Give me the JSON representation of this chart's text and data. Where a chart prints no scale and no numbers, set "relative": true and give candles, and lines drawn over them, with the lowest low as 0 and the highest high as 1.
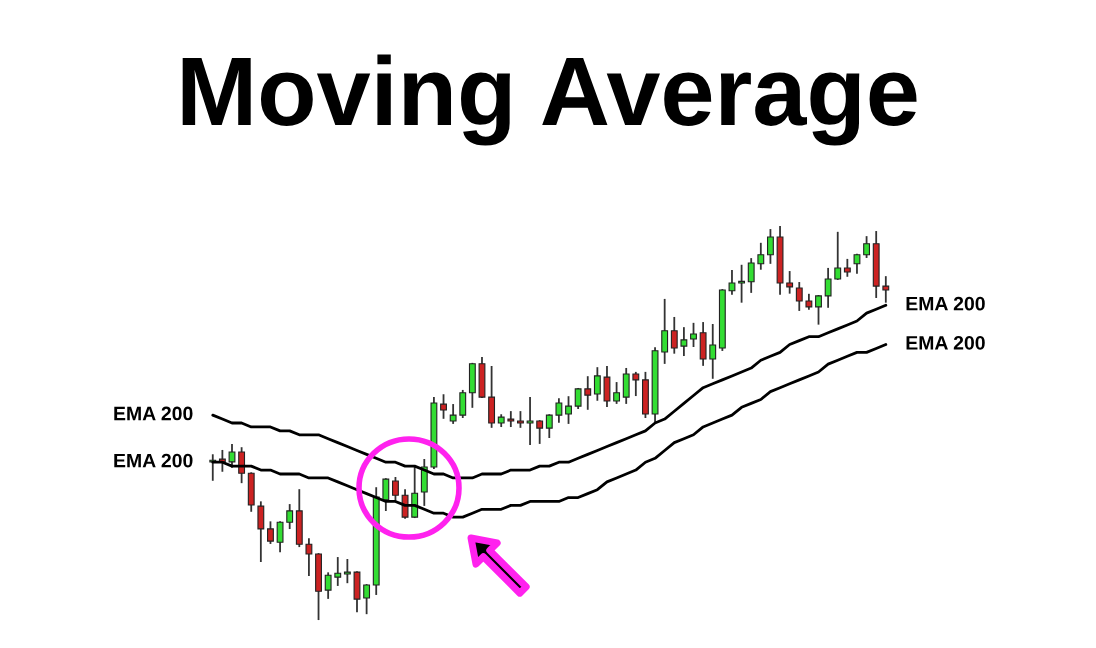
{
  "chart_data": {
    "type": "candlestick",
    "title": "Moving Average",
    "relative": true,
    "tick_labels": false,
    "categories": [
      null,
      null,
      null,
      null,
      null,
      null,
      null,
      null,
      null,
      null,
      null,
      null,
      null,
      null,
      null,
      null,
      null,
      null,
      null,
      null,
      null,
      null,
      null,
      null,
      null,
      null,
      null,
      null,
      null,
      null,
      null,
      null,
      null,
      null,
      null,
      null,
      null,
      null,
      null,
      null,
      null,
      null,
      null,
      null,
      null,
      null,
      null,
      null,
      null,
      null,
      null,
      null,
      null,
      null,
      null,
      null,
      null,
      null,
      null,
      null,
      null,
      null,
      null,
      null,
      null,
      null,
      null,
      null,
      null,
      null,
      null
    ],
    "ohlc": [
      [
        0.401,
        0.418,
        0.355,
        0.403
      ],
      [
        0.408,
        0.429,
        0.378,
        0.401
      ],
      [
        0.401,
        0.444,
        0.388,
        0.426
      ],
      [
        0.426,
        0.436,
        0.349,
        0.372
      ],
      [
        0.372,
        0.372,
        0.276,
        0.291
      ],
      [
        0.288,
        0.298,
        0.148,
        0.23
      ],
      [
        0.23,
        0.247,
        0.194,
        0.199
      ],
      [
        0.196,
        0.247,
        0.173,
        0.247
      ],
      [
        0.247,
        0.291,
        0.232,
        0.276
      ],
      [
        0.276,
        0.329,
        0.186,
        0.191
      ],
      [
        0.191,
        0.204,
        0.112,
        0.166
      ],
      [
        0.166,
        0.166,
        0,
        0.071
      ],
      [
        0.074,
        0.117,
        0.054,
        0.112
      ],
      [
        0.107,
        0.156,
        0.087,
        0.117
      ],
      [
        0.115,
        0.151,
        0.094,
        0.12
      ],
      [
        0.12,
        0.12,
        0.02,
        0.051
      ],
      [
        0.054,
        0.087,
        0.015,
        0.087
      ],
      [
        0.087,
        0.334,
        0.064,
        0.311
      ],
      [
        0.304,
        0.357,
        0.278,
        0.357
      ],
      [
        0.352,
        0.36,
        0.304,
        0.316
      ],
      [
        0.316,
        0.329,
        0.258,
        0.26
      ],
      [
        0.26,
        0.388,
        0.26,
        0.321
      ],
      [
        0.324,
        0.406,
        0.291,
        0.388
      ],
      [
        0.388,
        0.564,
        0.385,
        0.551
      ],
      [
        0.548,
        0.571,
        0.513,
        0.533
      ],
      [
        0.505,
        0.546,
        0.5,
        0.52
      ],
      [
        0.52,
        0.582,
        0.515,
        0.577
      ],
      [
        0.577,
        0.651,
        0.541,
        0.651
      ],
      [
        0.651,
        0.666,
        0.566,
        0.566
      ],
      [
        0.566,
        0.643,
        0.49,
        0.5
      ],
      [
        0.5,
        0.52,
        0.492,
        0.515
      ],
      [
        0.51,
        0.528,
        0.492,
        0.505
      ],
      [
        0.505,
        0.528,
        0.49,
        0.5
      ],
      [
        0.5,
        0.564,
        0.446,
        0.505
      ],
      [
        0.505,
        0.505,
        0.449,
        0.487
      ],
      [
        0.487,
        0.52,
        0.464,
        0.52
      ],
      [
        0.52,
        0.561,
        0.503,
        0.551
      ],
      [
        0.523,
        0.566,
        0.5,
        0.543
      ],
      [
        0.543,
        0.587,
        0.538,
        0.587
      ],
      [
        0.587,
        0.617,
        0.536,
        0.571
      ],
      [
        0.574,
        0.64,
        0.559,
        0.62
      ],
      [
        0.617,
        0.643,
        0.543,
        0.556
      ],
      [
        0.556,
        0.602,
        0.551,
        0.577
      ],
      [
        0.566,
        0.638,
        0.551,
        0.625
      ],
      [
        0.625,
        0.628,
        0.571,
        0.61
      ],
      [
        0.61,
        0.628,
        0.515,
        0.523
      ],
      [
        0.523,
        0.691,
        0.503,
        0.684
      ],
      [
        0.681,
        0.814,
        0.653,
        0.735
      ],
      [
        0.735,
        0.768,
        0.679,
        0.691
      ],
      [
        0.696,
        0.742,
        0.673,
        0.712
      ],
      [
        0.714,
        0.753,
        0.696,
        0.727
      ],
      [
        0.73,
        0.755,
        0.648,
        0.663
      ],
      [
        0.663,
        0.75,
        0.615,
        0.699
      ],
      [
        0.691,
        0.839,
        0.686,
        0.839
      ],
      [
        0.837,
        0.888,
        0.829,
        0.857
      ],
      [
        0.857,
        0.901,
        0.809,
        0.86
      ],
      [
        0.86,
        0.918,
        0.834,
        0.908
      ],
      [
        0.906,
        0.957,
        0.893,
        0.929
      ],
      [
        0.929,
        0.992,
        0.908,
        0.974
      ],
      [
        0.974,
        1,
        0.829,
        0.857
      ],
      [
        0.857,
        0.885,
        0.832,
        0.847
      ],
      [
        0.844,
        0.857,
        0.788,
        0.811
      ],
      [
        0.811,
        0.827,
        0.791,
        0.796
      ],
      [
        0.796,
        0.824,
        0.753,
        0.824
      ],
      [
        0.824,
        0.893,
        0.796,
        0.867
      ],
      [
        0.867,
        0.985,
        0.867,
        0.895
      ],
      [
        0.895,
        0.916,
        0.875,
        0.885
      ],
      [
        0.906,
        0.929,
        0.883,
        0.929
      ],
      [
        0.929,
        0.974,
        0.923,
        0.957
      ],
      [
        0.957,
        0.987,
        0.821,
        0.849
      ],
      [
        0.849,
        0.872,
        0.809,
        0.839
      ]
    ],
    "colors": [
      "#33dd33",
      "#cc2222",
      "#33dd33",
      "#cc2222",
      "#cc2222",
      "#cc2222",
      "#cc2222",
      "#33dd33",
      "#33dd33",
      "#cc2222",
      "#cc2222",
      "#cc2222",
      "#33dd33",
      "#33dd33",
      "#33dd33",
      "#cc2222",
      "#33dd33",
      "#33dd33",
      "#33dd33",
      "#cc2222",
      "#cc2222",
      "#33dd33",
      "#33dd33",
      "#33dd33",
      "#cc2222",
      "#33dd33",
      "#33dd33",
      "#33dd33",
      "#cc2222",
      "#cc2222",
      "#33dd33",
      "#cc2222",
      "#cc2222",
      "#33dd33",
      "#cc2222",
      "#33dd33",
      "#33dd33",
      "#33dd33",
      "#33dd33",
      "#cc2222",
      "#33dd33",
      "#cc2222",
      "#33dd33",
      "#33dd33",
      "#cc2222",
      "#cc2222",
      "#33dd33",
      "#33dd33",
      "#cc2222",
      "#33dd33",
      "#33dd33",
      "#cc2222",
      "#33dd33",
      "#33dd33",
      "#33dd33",
      "#33dd33",
      "#33dd33",
      "#33dd33",
      "#33dd33",
      "#cc2222",
      "#cc2222",
      "#cc2222",
      "#cc2222",
      "#33dd33",
      "#33dd33",
      "#33dd33",
      "#cc2222",
      "#33dd33",
      "#33dd33",
      "#cc2222",
      "#cc2222"
    ],
    "series": [
      {
        "name": "EMA 200",
        "type": "line",
        "color": "#000000",
        "values": [
          0.52,
          0.51,
          0.5,
          0.5,
          0.49,
          0.49,
          0.49,
          0.48,
          0.48,
          0.47,
          0.47,
          0.47,
          0.46,
          0.45,
          0.44,
          0.43,
          0.42,
          0.41,
          0.4,
          0.4,
          0.39,
          0.39,
          0.38,
          0.37,
          0.37,
          0.36,
          0.36,
          0.36,
          0.37,
          0.37,
          0.37,
          0.38,
          0.38,
          0.38,
          0.39,
          0.39,
          0.4,
          0.4,
          0.41,
          0.42,
          0.43,
          0.44,
          0.45,
          0.46,
          0.47,
          0.48,
          0.5,
          0.51,
          0.53,
          0.55,
          0.57,
          0.59,
          0.6,
          0.61,
          0.62,
          0.63,
          0.64,
          0.66,
          0.67,
          0.68,
          0.7,
          0.71,
          0.72,
          0.72,
          0.73,
          0.74,
          0.75,
          0.76,
          0.78,
          0.79,
          0.8
        ]
      },
      {
        "name": "EMA 200",
        "type": "line",
        "color": "#000000",
        "values": [
          0.4,
          0.4,
          0.39,
          0.39,
          0.39,
          0.38,
          0.38,
          0.37,
          0.37,
          0.37,
          0.36,
          0.36,
          0.36,
          0.35,
          0.34,
          0.33,
          0.32,
          0.31,
          0.3,
          0.3,
          0.29,
          0.29,
          0.28,
          0.27,
          0.27,
          0.26,
          0.26,
          0.27,
          0.28,
          0.28,
          0.28,
          0.29,
          0.29,
          0.3,
          0.3,
          0.3,
          0.3,
          0.31,
          0.31,
          0.32,
          0.33,
          0.35,
          0.36,
          0.37,
          0.38,
          0.4,
          0.41,
          0.43,
          0.45,
          0.46,
          0.47,
          0.49,
          0.5,
          0.51,
          0.52,
          0.54,
          0.55,
          0.56,
          0.58,
          0.59,
          0.6,
          0.61,
          0.62,
          0.63,
          0.65,
          0.66,
          0.67,
          0.68,
          0.68,
          0.69,
          0.7
        ]
      }
    ]
  }
}
